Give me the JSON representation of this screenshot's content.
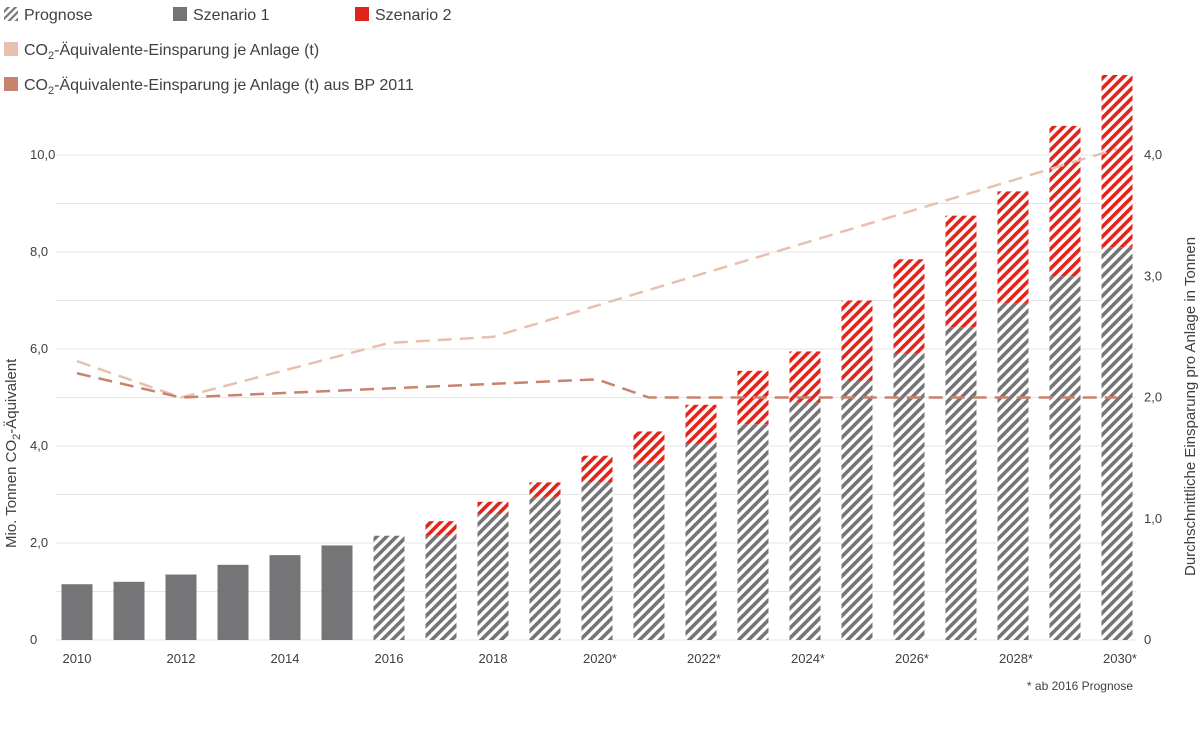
{
  "colors": {
    "scenario1": "#757577",
    "scenario2": "#e2241b",
    "line_current": "#e8c0b0",
    "line_bp2011": "#c9826d",
    "grid": "#e6e6e6"
  },
  "legend": {
    "prognose": "Prognose",
    "scenario1": "Szenario 1",
    "scenario2": "Szenario 2",
    "line_current_pre": "CO",
    "line_current_sub": "2",
    "line_current_post": "-Äquivalente-Einsparung je Anlage (t)",
    "line_bp2011_pre": "CO",
    "line_bp2011_sub": "2",
    "line_bp2011_post": "-Äquivalente-Einsparung je Anlage (t) aus BP 2011"
  },
  "footnote": "* ab 2016 Prognose",
  "chart_data": {
    "type": "bar",
    "categories": [
      "2010",
      "2011",
      "2012",
      "2013",
      "2014",
      "2015",
      "2016",
      "2017",
      "2018",
      "2019",
      "2020",
      "2021",
      "2022",
      "2023",
      "2024",
      "2025",
      "2026",
      "2027",
      "2028",
      "2029",
      "2030"
    ],
    "x_tick_labels": [
      "2010",
      "",
      "2012",
      "",
      "2014",
      "",
      "2016",
      "",
      "2018",
      "",
      "2020*",
      "",
      "2022*",
      "",
      "2024*",
      "",
      "2026*",
      "",
      "2028*",
      "",
      "2030*"
    ],
    "forecast_from": "2016",
    "stacked": true,
    "series": [
      {
        "name": "Szenario 1",
        "axis": "left",
        "values": [
          1.15,
          1.2,
          1.35,
          1.55,
          1.75,
          1.95,
          2.15,
          2.15,
          2.6,
          2.95,
          3.25,
          3.65,
          4.05,
          4.45,
          4.9,
          5.35,
          5.9,
          6.45,
          6.95,
          7.5,
          8.1
        ]
      },
      {
        "name": "Szenario 2",
        "axis": "left",
        "values": [
          0,
          0,
          0,
          0,
          0,
          0,
          0,
          0.3,
          0.25,
          0.3,
          0.55,
          0.65,
          0.8,
          1.1,
          1.05,
          1.65,
          1.95,
          2.3,
          2.3,
          3.1,
          3.55
        ]
      },
      {
        "name": "CO2-Äquivalente-Einsparung je Anlage (t)",
        "type": "line",
        "axis": "right",
        "x": [
          2010,
          2012,
          2016,
          2018,
          2030
        ],
        "values": [
          2.3,
          2.0,
          2.45,
          2.5,
          4.05
        ]
      },
      {
        "name": "CO2-Äquivalente-Einsparung je Anlage (t) aus BP 2011",
        "type": "line",
        "axis": "right",
        "x": [
          2010,
          2012,
          2020,
          2021,
          2030
        ],
        "values": [
          2.2,
          2.0,
          2.15,
          2.0,
          2.0
        ]
      }
    ],
    "y_left": {
      "ylabel_pre": "Mio. Tonnen CO",
      "ylabel_sub": "2",
      "ylabel_post": "-Äquivalent",
      "ylim": [
        0,
        12
      ],
      "ticks": [
        0,
        2,
        4,
        6,
        8,
        10
      ],
      "tick_labels": [
        "0",
        "2,0",
        "4,0",
        "6,0",
        "8,0",
        "10,0"
      ]
    },
    "y_right": {
      "ylabel": "Durchschnittliche Einsparung pro Anlage in Tonnen",
      "ylim": [
        0,
        4.0
      ],
      "ticks": [
        0,
        1,
        2,
        3,
        4
      ],
      "tick_labels": [
        "0",
        "1,0",
        "2,0",
        "3,0",
        "4,0"
      ]
    },
    "grid": true,
    "legend_position": "top-left"
  }
}
